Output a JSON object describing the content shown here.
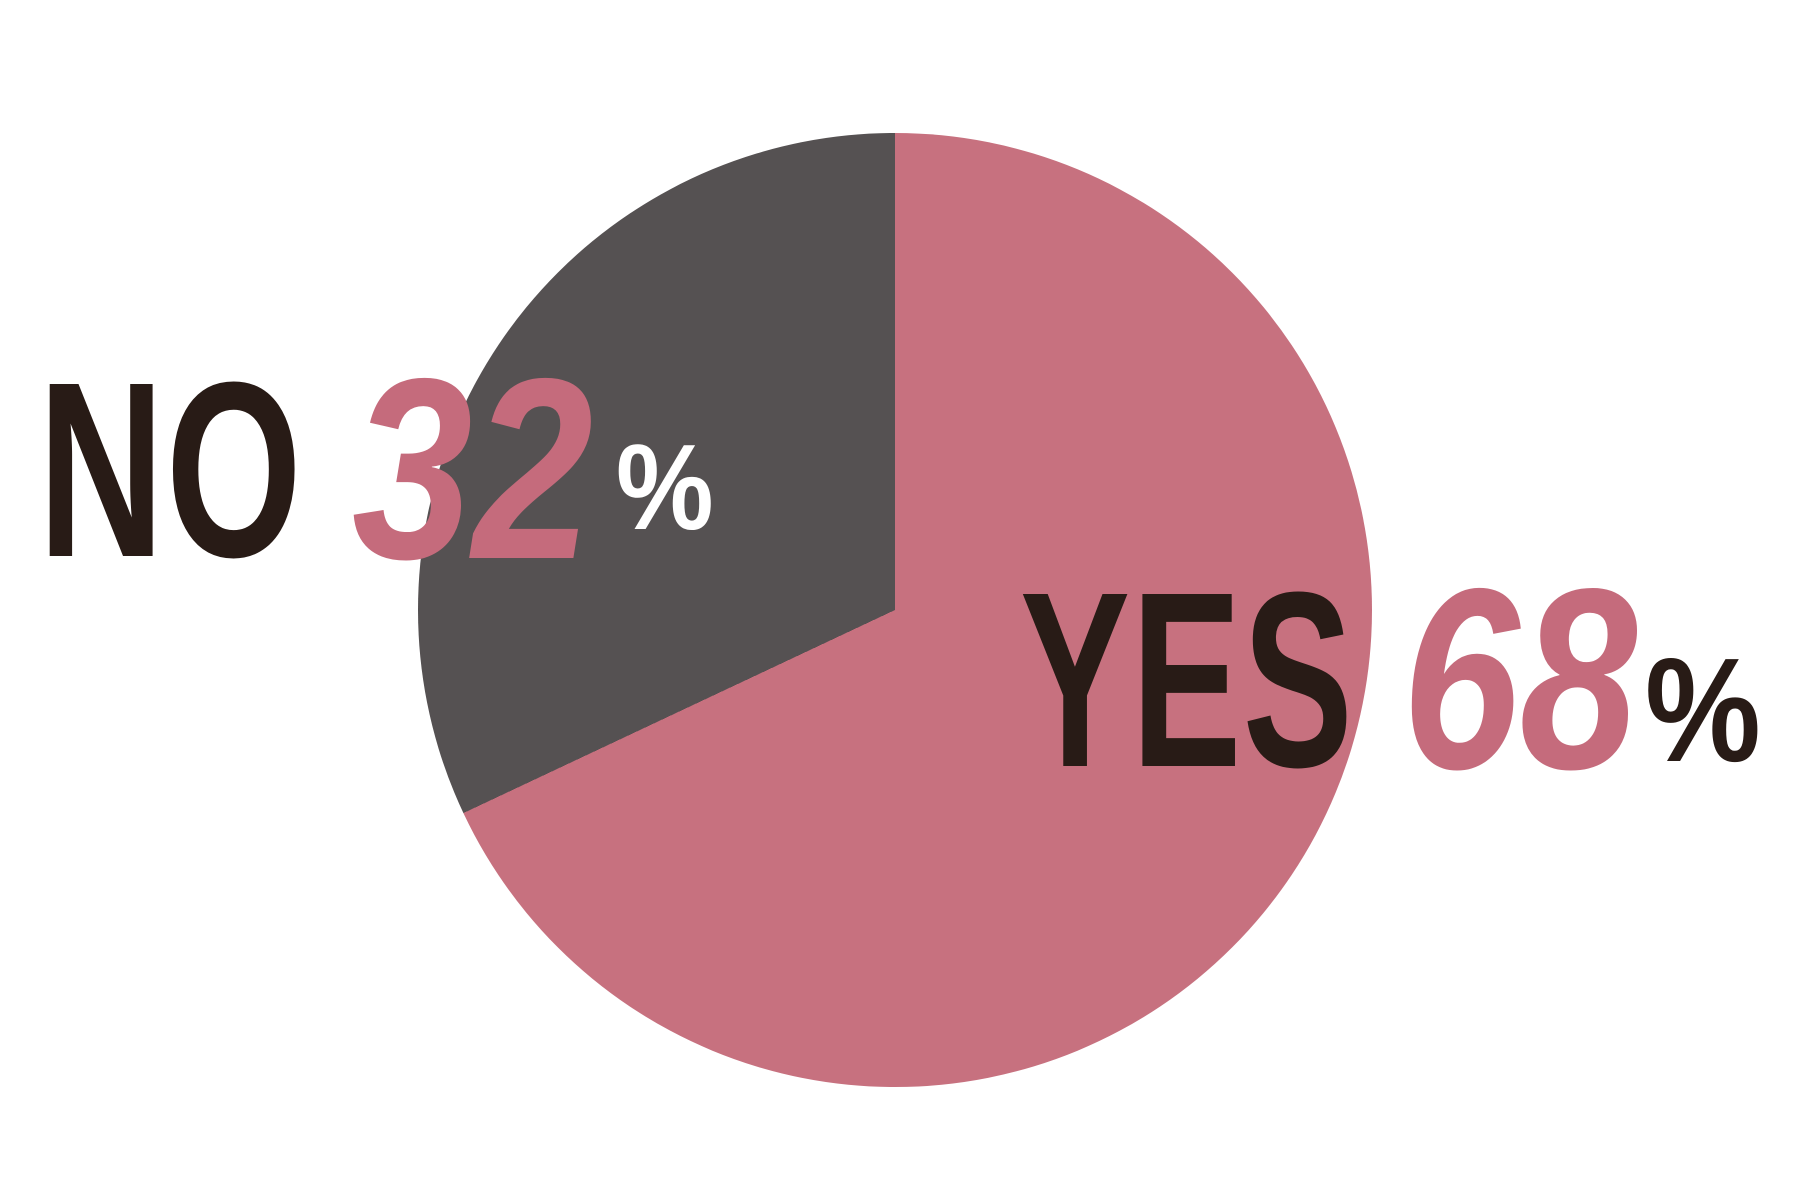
{
  "chart_data": {
    "type": "pie",
    "title": "",
    "slices": [
      {
        "label": "YES",
        "value": 68,
        "color": "#c7717f"
      },
      {
        "label": "NO",
        "value": 32,
        "color": "#555152"
      }
    ],
    "start_angle_deg": 0,
    "direction": "clockwise",
    "legend_position": "none",
    "label_layout": "callout-text-beside-slices"
  },
  "labels": {
    "yes": {
      "word": "YES",
      "value": "68",
      "percent_sign": "%"
    },
    "no": {
      "word": "NO",
      "value": "32",
      "percent_sign": "%"
    }
  },
  "colors": {
    "yes_slice": "#c7717f",
    "no_slice": "#555152",
    "ink_text": "#281b16",
    "number_text": "#c56b7c",
    "no_percent_sign": "#ffffff",
    "background": "#ffffff"
  }
}
